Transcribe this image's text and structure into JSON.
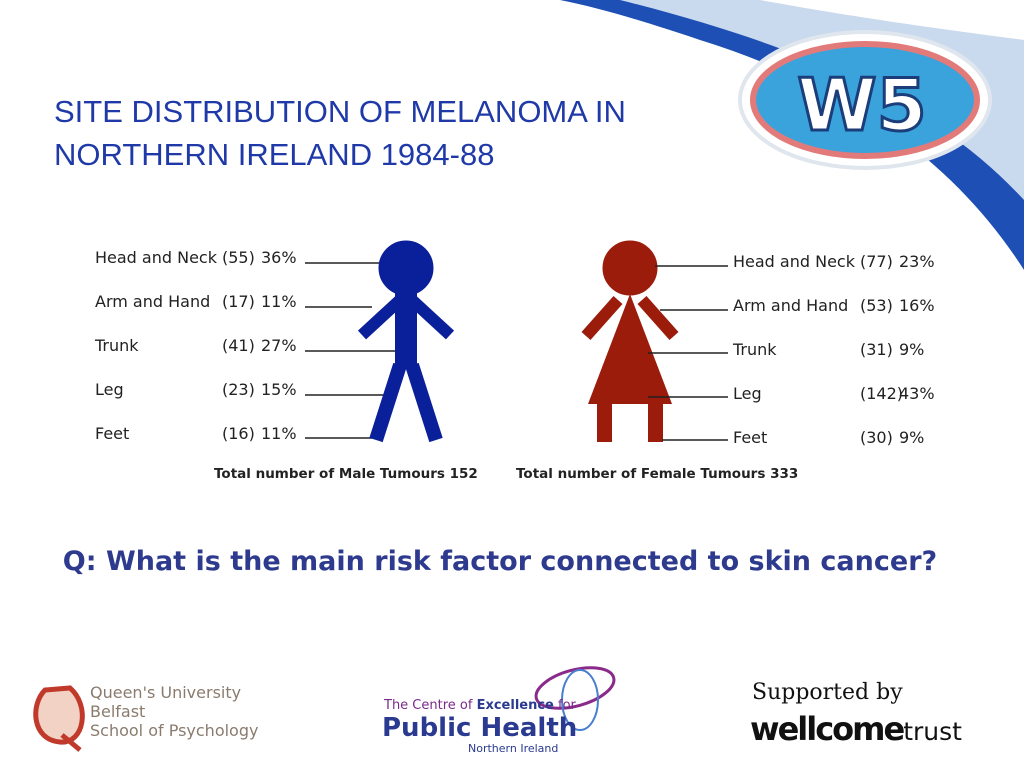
{
  "title": {
    "line1": "SITE DISTRIBUTION OF MELANOMA IN",
    "line2": "NORTHERN IRELAND 1984-88"
  },
  "logo": "W5",
  "male": {
    "rows": [
      {
        "site": "Head and Neck",
        "count": "(55)",
        "percent": "36%"
      },
      {
        "site": "Arm and Hand",
        "count": "(17)",
        "percent": "11%"
      },
      {
        "site": "Trunk",
        "count": "(41)",
        "percent": "27%"
      },
      {
        "site": "Leg",
        "count": "(23)",
        "percent": "15%"
      },
      {
        "site": "Feet",
        "count": "(16)",
        "percent": "11%"
      }
    ],
    "total": "Total number of Male Tumours 152"
  },
  "female": {
    "rows": [
      {
        "site": "Head and Neck",
        "count": "(77)",
        "percent": "23%"
      },
      {
        "site": "Arm and Hand",
        "count": "(53)",
        "percent": "16%"
      },
      {
        "site": "Trunk",
        "count": "(31)",
        "percent": "9%"
      },
      {
        "site": "Leg",
        "count": "(142)",
        "percent": "43%"
      },
      {
        "site": "Feet",
        "count": "(30)",
        "percent": "9%"
      }
    ],
    "total": "Total number of Female Tumours 333"
  },
  "question": "Q: What is the main risk factor connected to skin cancer?",
  "footer": {
    "queens": {
      "line1": "Queen's University",
      "line2": "Belfast",
      "line3": "School of Psychology"
    },
    "centre": {
      "line1a": "The Centre of ",
      "line1b": "Excellence",
      "line1c": " for",
      "line2": "Public Health",
      "line3": "Northern Ireland"
    },
    "wellcome": {
      "supported": "Supported by",
      "word1": "wellcome",
      "word2": "trust"
    }
  }
}
